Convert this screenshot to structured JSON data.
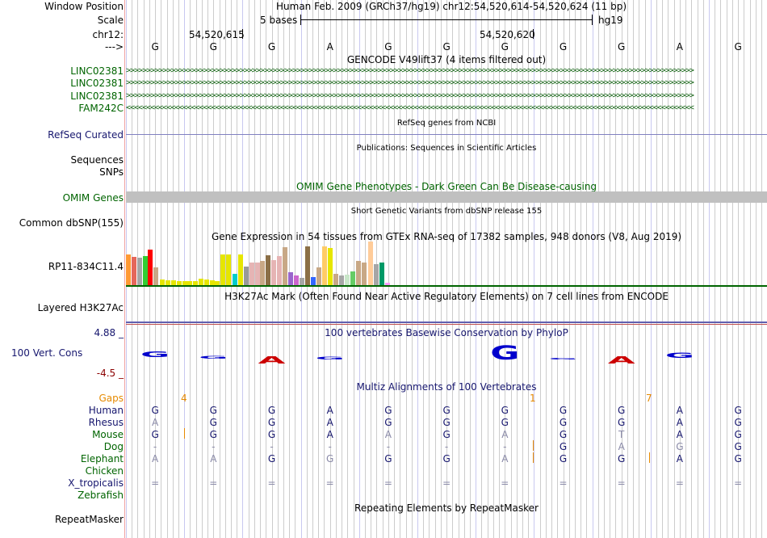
{
  "header": {
    "window_position_label": "Window Position",
    "window_position_value": "Human Feb. 2009 (GRCh37/hg19)   chr12:54,520,614-54,520,624 (11 bp)",
    "scale_label": "Scale",
    "scale_text": "5 bases",
    "scale_assembly": "hg19",
    "chrom_label": "chr12:",
    "coord1": "54,520,615",
    "coord2": "54,520,620",
    "strand_label": "--->"
  },
  "sequence": [
    "G",
    "G",
    "G",
    "A",
    "G",
    "G",
    "G",
    "G",
    "G",
    "A",
    "G"
  ],
  "tracks": {
    "gencode_title": "GENCODE V49lift37 (4 items filtered out)",
    "gencode_genes": [
      {
        "name": "LINC02381",
        "strand": "+"
      },
      {
        "name": "LINC02381",
        "strand": "+"
      },
      {
        "name": "LINC02381",
        "strand": "+"
      },
      {
        "name": "FAM242C",
        "strand": "-"
      }
    ],
    "refseq_title": "RefSeq genes from NCBI",
    "refseq_label": "RefSeq Curated",
    "publications_title": "Publications: Sequences in Scientific Articles",
    "sequences_label": "Sequences",
    "snps_label": "SNPs",
    "omim_title": "OMIM Gene Phenotypes - Dark Green Can Be Disease-causing",
    "omim_label": "OMIM Genes",
    "dbsnp_title": "Short Genetic Variants from dbSNP release 155",
    "dbsnp_label": "Common dbSNP(155)",
    "gtex_title": "Gene Expression in 54 tissues from GTEx RNA-seq of 17382 samples, 948 donors (V8, Aug 2019)",
    "gtex_label": "RP11-834C11.4",
    "h3k27ac_title": "H3K27Ac Mark (Often Found Near Active Regulatory Elements) on 7 cell lines from ENCODE",
    "h3k27ac_label": "Layered H3K27Ac",
    "cons_title": "100 vertebrates Basewise Conservation by PhyloP",
    "cons_label": "100 Vert. Cons",
    "cons_max": "4.88 _",
    "cons_min": "-4.5 _",
    "multiz_title": "Multiz Alignments of 100 Vertebrates",
    "gaps_label": "Gaps",
    "gaps_values": [
      "4",
      "1",
      "7"
    ],
    "repeat_title": "Repeating Elements by RepeatMasker",
    "repeat_label": "RepeatMasker"
  },
  "gtex_colors": [
    "#ff9933",
    "#e5675b",
    "#a6a6a6",
    "#32cd32",
    "#ff0000",
    "#c8a886",
    "#e6e600",
    "#e6e600",
    "#e6e600",
    "#e6e600",
    "#e6e600",
    "#e6e600",
    "#e6e600",
    "#e6e600",
    "#e6e600",
    "#e6e600",
    "#e6e600",
    "#e6e600",
    "#e6e600",
    "#00cccc",
    "#e6e600",
    "#999999",
    "#e6b4b4",
    "#e6b4b4",
    "#c8a886",
    "#8b6f47",
    "#e6b4b4",
    "#e6b4b4",
    "#c8a886",
    "#9966cc",
    "#cc66cc",
    "#a6a6a6",
    "#8b6f47",
    "#3366ff",
    "#c8a886",
    "#ffcc66",
    "#e6e600",
    "#c8a886",
    "#a6a6a6",
    "#c8e6c8",
    "#66cc66",
    "#c8a886",
    "#c8a886",
    "#ffcc99",
    "#a6a6a6",
    "#009966",
    "#ff99ff"
  ],
  "gtex_values": [
    38,
    35,
    34,
    36,
    44,
    22,
    7,
    6,
    6,
    5,
    5,
    5,
    5,
    8,
    7,
    6,
    5,
    38,
    38,
    14,
    38,
    23,
    28,
    28,
    30,
    37,
    31,
    36,
    47,
    16,
    12,
    9,
    48,
    10,
    22,
    48,
    46,
    14,
    12,
    13,
    17,
    30,
    28,
    54,
    26,
    28,
    3
  ],
  "multiz_species": [
    {
      "name": "Human",
      "color": "#16166e",
      "bases": [
        "G",
        "G",
        "G",
        "A",
        "G",
        "G",
        "G",
        "G",
        "G",
        "A",
        "G"
      ],
      "faint": []
    },
    {
      "name": "Rhesus",
      "color": "#16166e",
      "bases": [
        "A",
        "G",
        "G",
        "A",
        "G",
        "G",
        "G",
        "G",
        "G",
        "A",
        "G"
      ],
      "faint": [
        0
      ]
    },
    {
      "name": "Mouse",
      "color": "#006400",
      "bases": [
        "G",
        "G",
        "G",
        "A",
        "A",
        "G",
        "A",
        "G",
        "T",
        "A",
        "G"
      ],
      "faint": [
        4,
        6,
        8
      ]
    },
    {
      "name": "Dog",
      "color": "#006400",
      "bases": [
        "-",
        "-",
        "-",
        "-",
        "-",
        "-",
        "-",
        "G",
        "A",
        "G",
        "G"
      ],
      "faint": [
        0,
        1,
        2,
        3,
        4,
        5,
        6,
        8,
        9
      ]
    },
    {
      "name": "Elephant",
      "color": "#006400",
      "bases": [
        "A",
        "A",
        "G",
        "G",
        "G",
        "G",
        "A",
        "G",
        "G",
        "A",
        "G"
      ],
      "faint": [
        0,
        1,
        3,
        6
      ]
    },
    {
      "name": "Chicken",
      "color": "#006400",
      "bases": [],
      "faint": []
    },
    {
      "name": "X_tropicalis",
      "color": "#16166e",
      "bases": [
        "=",
        "=",
        "=",
        "=",
        "=",
        "=",
        "=",
        "=",
        "=",
        "=",
        "="
      ],
      "faint": [
        0,
        1,
        2,
        3,
        4,
        5,
        6,
        7,
        8,
        9,
        10
      ]
    },
    {
      "name": "Zebrafish",
      "color": "#006400",
      "bases": [],
      "faint": []
    }
  ],
  "colors": {
    "gene_green": "#0a5e0a",
    "label_navy": "#16166e",
    "label_green": "#006400",
    "gaps_orange": "#e68a00",
    "omim_gray": "#c0c0c0",
    "cons_blue": "#0000cc",
    "cons_red": "#cc0000"
  }
}
